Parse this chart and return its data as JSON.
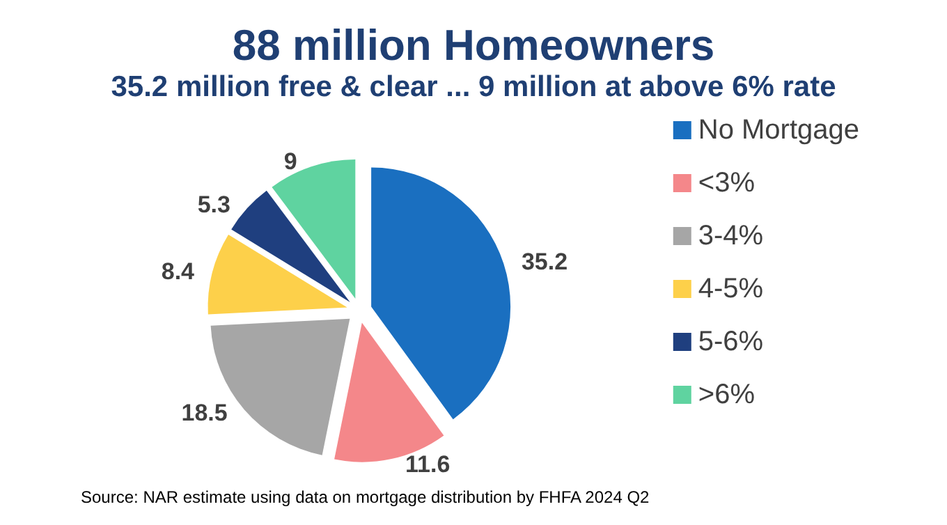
{
  "chart_data": {
    "type": "pie",
    "title": "88 million Homeowners",
    "subtitle": "35.2 million free & clear ... 9 million at above 6% rate",
    "categories": [
      "No Mortgage",
      "<3%",
      "3-4%",
      "4-5%",
      "5-6%",
      ">6%"
    ],
    "values": [
      35.2,
      11.6,
      18.5,
      8.4,
      5.3,
      9
    ],
    "colors": [
      "#1a6fc0",
      "#f4878a",
      "#a6a6a6",
      "#fdd04a",
      "#1f3f7f",
      "#5fd3a0"
    ],
    "data_labels": true,
    "legend": "right",
    "annotations": [
      "Source: NAR estimate using data on mortgage distribution by FHFA 2024 Q2"
    ]
  }
}
